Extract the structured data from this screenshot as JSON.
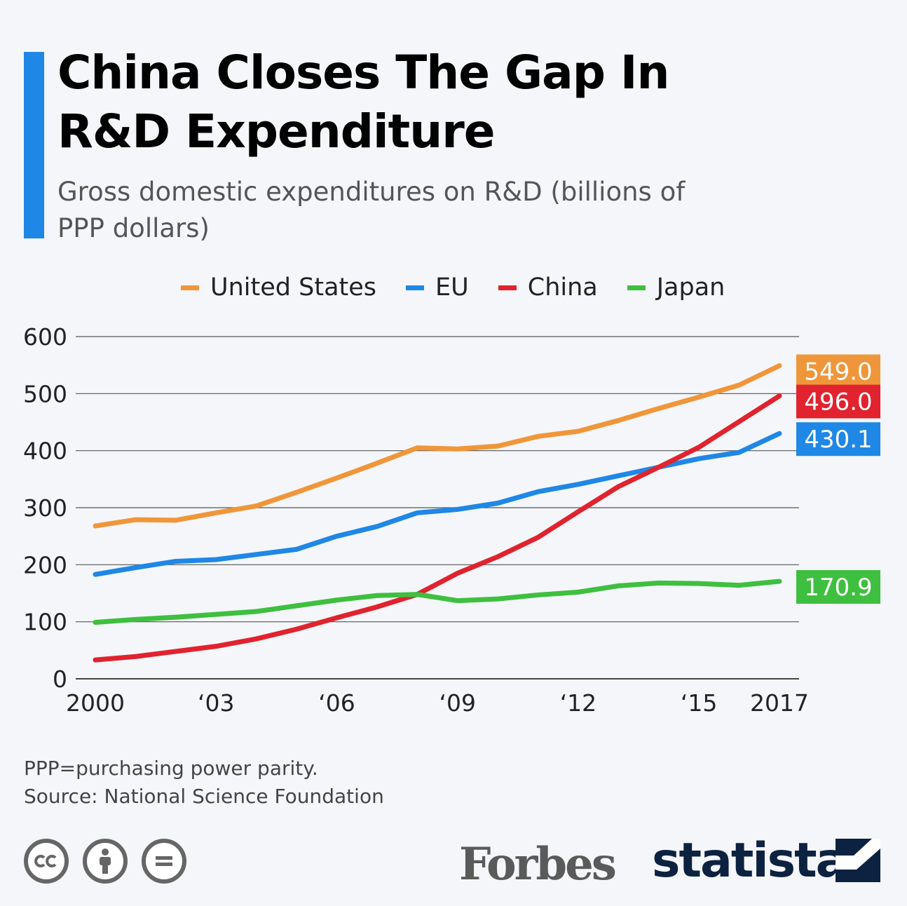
{
  "header": {
    "title": "China Closes The Gap In R&D Expenditure",
    "subtitle": "Gross domestic expenditures on R&D (billions of PPP dollars)"
  },
  "footer": {
    "note": "PPP=purchasing power parity.",
    "source": "Source: National Science Foundation",
    "brand_forbes": "Forbes",
    "brand_statista": "statista",
    "license_icons": [
      "cc-icon",
      "attribution-icon",
      "no-derivatives-icon"
    ]
  },
  "chart_data": {
    "type": "line",
    "title": "China Closes The Gap In R&D Expenditure",
    "subtitle": "Gross domestic expenditures on R&D (billions of PPP dollars)",
    "x": [
      2000,
      2001,
      2002,
      2003,
      2004,
      2005,
      2006,
      2007,
      2008,
      2009,
      2010,
      2011,
      2012,
      2013,
      2014,
      2015,
      2016,
      2017
    ],
    "x_tick_values": [
      2000,
      2003,
      2006,
      2009,
      2012,
      2015,
      2017
    ],
    "x_tick_labels": [
      "2000",
      "‘03",
      "‘06",
      "‘09",
      "‘12",
      "‘15",
      "2017"
    ],
    "y_ticks": [
      0,
      100,
      200,
      300,
      400,
      500,
      600
    ],
    "ylim": [
      0,
      600
    ],
    "grid": true,
    "legend_position": "top",
    "series": [
      {
        "name": "United States",
        "color": "#f0963a",
        "values": [
          268,
          279,
          278,
          291,
          303,
          327,
          352,
          378,
          405,
          403,
          408,
          425,
          434,
          453,
          474,
          494,
          515,
          549.0
        ],
        "end_label": "549.0"
      },
      {
        "name": "EU",
        "color": "#1f87e6",
        "values": [
          183,
          195,
          206,
          209,
          218,
          227,
          250,
          267,
          291,
          297,
          308,
          328,
          341,
          356,
          371,
          386,
          397,
          430.1
        ],
        "end_label": "430.1"
      },
      {
        "name": "China",
        "color": "#e0232e",
        "values": [
          33,
          39,
          48,
          57,
          70,
          87,
          107,
          126,
          148,
          185,
          214,
          248,
          293,
          337,
          371,
          406,
          451,
          496.0
        ],
        "end_label": "496.0"
      },
      {
        "name": "Japan",
        "color": "#3fbf3f",
        "values": [
          99,
          104,
          108,
          113,
          118,
          128,
          138,
          146,
          148,
          137,
          140,
          147,
          152,
          163,
          168,
          167,
          164,
          170.9
        ],
        "end_label": "170.9"
      }
    ]
  }
}
